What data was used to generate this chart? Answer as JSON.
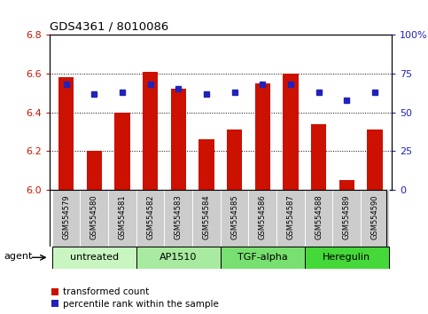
{
  "title": "GDS4361 / 8010086",
  "samples": [
    "GSM554579",
    "GSM554580",
    "GSM554581",
    "GSM554582",
    "GSM554583",
    "GSM554584",
    "GSM554585",
    "GSM554586",
    "GSM554587",
    "GSM554588",
    "GSM554589",
    "GSM554590"
  ],
  "red_values": [
    6.58,
    6.2,
    6.4,
    6.61,
    6.52,
    6.26,
    6.31,
    6.55,
    6.6,
    6.34,
    6.05,
    6.31
  ],
  "blue_percentiles": [
    68,
    62,
    63,
    68,
    65,
    62,
    63,
    68,
    68,
    63,
    58,
    63
  ],
  "ylim_min": 6.0,
  "ylim_max": 6.8,
  "yticks_left": [
    6.0,
    6.2,
    6.4,
    6.6,
    6.8
  ],
  "yticks_right": [
    0,
    25,
    50,
    75,
    100
  ],
  "groups": [
    {
      "label": "untreated",
      "start": 0,
      "end": 3,
      "color": "#c8f5c0"
    },
    {
      "label": "AP1510",
      "start": 3,
      "end": 6,
      "color": "#a8eba0"
    },
    {
      "label": "TGF-alpha",
      "start": 6,
      "end": 9,
      "color": "#78e070"
    },
    {
      "label": "Heregulin",
      "start": 9,
      "end": 12,
      "color": "#44d838"
    }
  ],
  "bar_color": "#cc1100",
  "dot_color": "#2222bb",
  "bar_width": 0.55,
  "left_tick_color": "#cc1100",
  "right_tick_color": "#2222bb",
  "legend_red_label": "transformed count",
  "legend_blue_label": "percentile rank within the sample",
  "agent_label": "agent",
  "sample_area_color": "#cccccc",
  "fig_width": 4.83,
  "fig_height": 3.54,
  "dpi": 100
}
